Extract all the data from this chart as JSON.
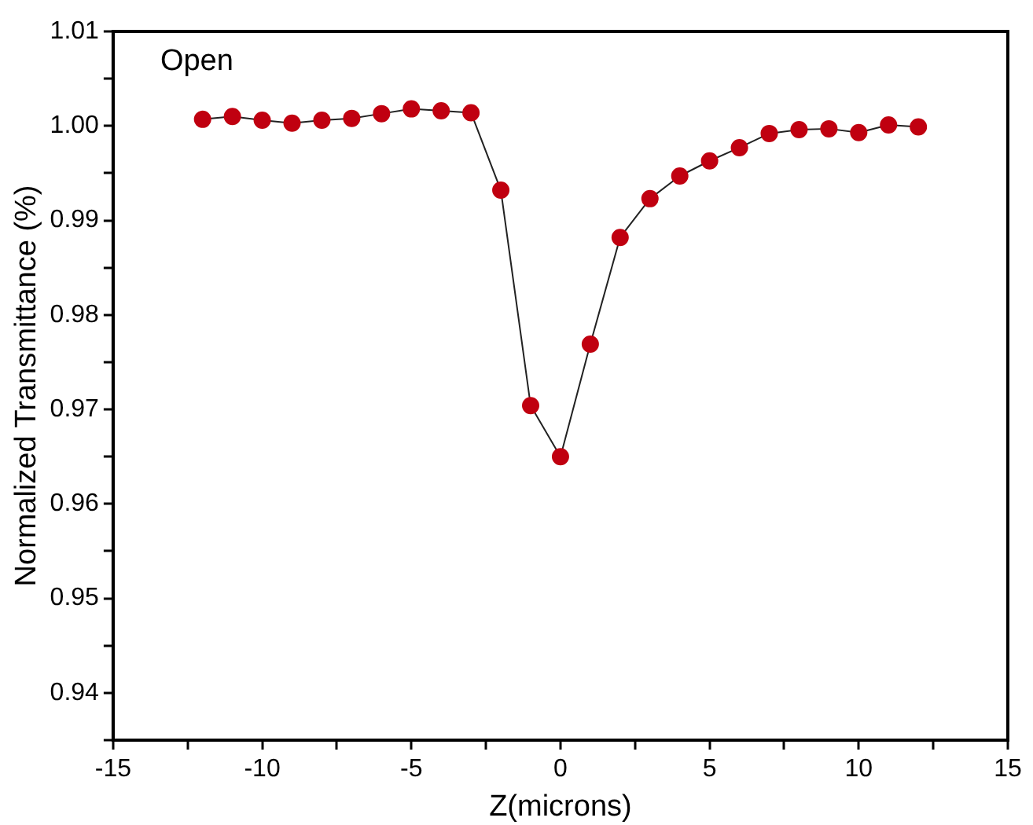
{
  "chart_data": {
    "type": "line",
    "xlabel": "Z(microns)",
    "ylabel": "Normalized Transmittance (%)",
    "annotations": [
      "Open"
    ],
    "x": [
      -12,
      -11,
      -10,
      -9,
      -8,
      -7,
      -6,
      -5,
      -4,
      -3,
      -2,
      -1,
      0,
      1,
      2,
      3,
      4,
      5,
      6,
      7,
      8,
      9,
      10,
      11,
      12
    ],
    "series": [
      {
        "color": "#c00010",
        "values": [
          1.0007,
          1.001,
          1.0006,
          1.0003,
          1.0006,
          1.0008,
          1.0013,
          1.0018,
          1.0016,
          1.0014,
          0.9932,
          0.9704,
          0.965,
          0.9769,
          0.9882,
          0.9923,
          0.9947,
          0.9963,
          0.9977,
          0.9992,
          0.9996,
          0.9997,
          0.9993,
          1.0001,
          0.9999
        ]
      }
    ],
    "xlim": [
      -15,
      15
    ],
    "xticks": [
      -15,
      {
        "value": -12.5,
        "label": null
      },
      -10,
      {
        "value": -7.5,
        "label": null
      },
      -5,
      {
        "value": -2.5,
        "label": null
      },
      0,
      {
        "value": 2.5,
        "label": null
      },
      5,
      {
        "value": 7.5,
        "label": null
      },
      10,
      {
        "value": 12.5,
        "label": null
      },
      15
    ],
    "ylim": [
      0.935,
      1.01
    ],
    "yticks": [
      {
        "value": 0.935,
        "label": null
      },
      0.94,
      {
        "value": 0.945,
        "label": null
      },
      0.95,
      {
        "value": 0.955,
        "label": null
      },
      0.96,
      {
        "value": 0.965,
        "label": null
      },
      0.97,
      {
        "value": 0.975,
        "label": null
      },
      0.98,
      {
        "value": 0.985,
        "label": null
      },
      0.99,
      {
        "value": 0.995,
        "label": null
      },
      "1.00",
      {
        "value": 1.005,
        "label": null
      },
      1.01
    ],
    "grid": false,
    "legend": false,
    "marker": "circle",
    "line_style": "solid"
  }
}
